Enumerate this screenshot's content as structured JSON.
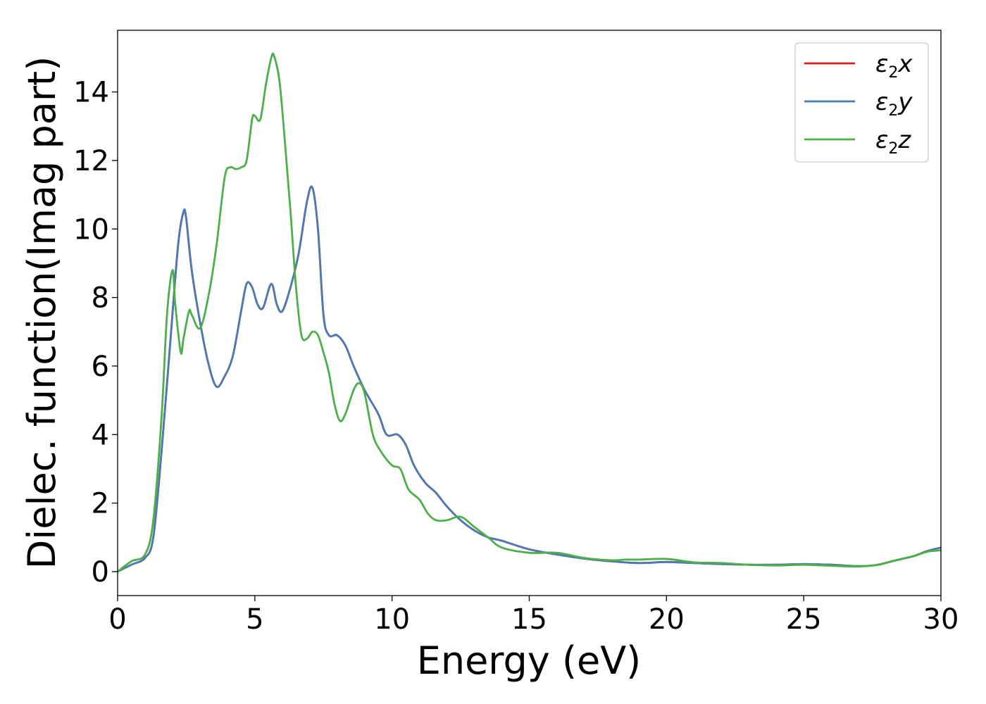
{
  "chart_data": {
    "type": "line",
    "title": "",
    "xlabel": "Energy (eV)",
    "ylabel": "Dielec. function(Imag part)",
    "xlim": [
      0,
      30
    ],
    "ylim": [
      -0.7,
      15.8
    ],
    "xticks": [
      0,
      5,
      10,
      15,
      20,
      25,
      30
    ],
    "yticks": [
      0,
      2,
      4,
      6,
      8,
      10,
      12,
      14
    ],
    "grid": false,
    "legend_position": "top-right",
    "series": [
      {
        "name_base": "ε",
        "name_sub": "2",
        "name_suffix": "x",
        "color": "#e41a1c",
        "x": [
          0,
          0.5,
          1.0,
          1.3,
          1.6,
          1.9,
          2.2,
          2.4,
          2.5,
          2.7,
          3.0,
          3.3,
          3.6,
          3.9,
          4.2,
          4.5,
          4.7,
          4.9,
          5.1,
          5.3,
          5.6,
          5.8,
          6.0,
          6.3,
          6.6,
          6.9,
          7.1,
          7.3,
          7.5,
          7.7,
          8.0,
          8.3,
          8.6,
          9.0,
          9.5,
          9.8,
          10.2,
          10.5,
          10.8,
          11.2,
          11.6,
          12.0,
          12.5,
          13.0,
          13.5,
          14.0,
          15.0,
          16.0,
          17.0,
          18.0,
          19.0,
          20.0,
          21.0,
          22.0,
          23.0,
          24.0,
          25.0,
          26.0,
          27.0,
          27.7,
          28.3,
          29.0,
          29.5,
          30.0
        ],
        "y": [
          0,
          0.2,
          0.4,
          1.0,
          3.5,
          6.5,
          9.5,
          10.5,
          10.3,
          8.8,
          7.3,
          6.1,
          5.4,
          5.7,
          6.3,
          7.6,
          8.4,
          8.3,
          7.8,
          7.7,
          8.4,
          7.8,
          7.6,
          8.3,
          9.3,
          10.8,
          11.2,
          10.0,
          7.5,
          6.9,
          6.9,
          6.6,
          6.0,
          5.3,
          4.6,
          4.0,
          4.0,
          3.7,
          3.1,
          2.6,
          2.3,
          1.9,
          1.5,
          1.2,
          1.0,
          0.9,
          0.65,
          0.5,
          0.38,
          0.3,
          0.25,
          0.28,
          0.25,
          0.22,
          0.2,
          0.2,
          0.22,
          0.2,
          0.16,
          0.2,
          0.32,
          0.45,
          0.6,
          0.7
        ]
      },
      {
        "name_base": "ε",
        "name_sub": "2",
        "name_suffix": "y",
        "color": "#4a7bb4",
        "x": [
          0,
          0.5,
          1.0,
          1.3,
          1.6,
          1.9,
          2.2,
          2.4,
          2.5,
          2.7,
          3.0,
          3.3,
          3.6,
          3.9,
          4.2,
          4.5,
          4.7,
          4.9,
          5.1,
          5.3,
          5.6,
          5.8,
          6.0,
          6.3,
          6.6,
          6.9,
          7.1,
          7.3,
          7.5,
          7.7,
          8.0,
          8.3,
          8.6,
          9.0,
          9.5,
          9.8,
          10.2,
          10.5,
          10.8,
          11.2,
          11.6,
          12.0,
          12.5,
          13.0,
          13.5,
          14.0,
          15.0,
          16.0,
          17.0,
          18.0,
          19.0,
          20.0,
          21.0,
          22.0,
          23.0,
          24.0,
          25.0,
          26.0,
          27.0,
          27.7,
          28.3,
          29.0,
          29.5,
          30.0
        ],
        "y": [
          0,
          0.2,
          0.4,
          1.0,
          3.5,
          6.5,
          9.5,
          10.5,
          10.3,
          8.8,
          7.3,
          6.1,
          5.4,
          5.7,
          6.3,
          7.6,
          8.4,
          8.3,
          7.8,
          7.7,
          8.4,
          7.8,
          7.6,
          8.3,
          9.3,
          10.8,
          11.2,
          10.0,
          7.5,
          6.9,
          6.9,
          6.6,
          6.0,
          5.3,
          4.6,
          4.0,
          4.0,
          3.7,
          3.1,
          2.6,
          2.3,
          1.9,
          1.5,
          1.2,
          1.0,
          0.9,
          0.65,
          0.5,
          0.38,
          0.3,
          0.25,
          0.28,
          0.25,
          0.22,
          0.2,
          0.2,
          0.22,
          0.2,
          0.16,
          0.2,
          0.32,
          0.45,
          0.6,
          0.7
        ]
      },
      {
        "name_base": "ε",
        "name_sub": "2",
        "name_suffix": "z",
        "color": "#4daf4a",
        "x": [
          0,
          0.5,
          1.0,
          1.3,
          1.6,
          1.8,
          2.0,
          2.1,
          2.3,
          2.4,
          2.6,
          2.7,
          3.0,
          3.3,
          3.6,
          3.9,
          4.1,
          4.3,
          4.5,
          4.7,
          4.9,
          5.0,
          5.2,
          5.4,
          5.6,
          5.7,
          5.9,
          6.1,
          6.3,
          6.5,
          6.7,
          6.9,
          7.1,
          7.3,
          7.5,
          7.7,
          7.9,
          8.1,
          8.3,
          8.6,
          8.8,
          9.0,
          9.3,
          9.6,
          10.0,
          10.3,
          10.6,
          11.0,
          11.3,
          11.6,
          12.0,
          12.5,
          13.0,
          13.5,
          14.0,
          15.0,
          16.0,
          17.0,
          18.0,
          18.5,
          19.0,
          20.0,
          21.0,
          22.0,
          23.0,
          24.0,
          25.0,
          26.0,
          27.0,
          27.7,
          28.3,
          29.0,
          29.5,
          30.0
        ],
        "y": [
          0,
          0.3,
          0.5,
          1.5,
          4.5,
          7.5,
          8.8,
          7.8,
          6.4,
          6.8,
          7.6,
          7.5,
          7.1,
          8.0,
          9.5,
          11.5,
          11.8,
          11.75,
          11.8,
          12.0,
          13.2,
          13.3,
          13.2,
          14.2,
          15.0,
          15.05,
          14.3,
          12.5,
          10.5,
          8.3,
          6.9,
          6.8,
          7.0,
          6.9,
          6.4,
          5.8,
          4.9,
          4.4,
          4.6,
          5.3,
          5.5,
          5.2,
          4.0,
          3.5,
          3.1,
          3.0,
          2.4,
          2.1,
          1.7,
          1.5,
          1.5,
          1.6,
          1.3,
          1.0,
          0.7,
          0.55,
          0.55,
          0.4,
          0.33,
          0.35,
          0.35,
          0.37,
          0.27,
          0.25,
          0.2,
          0.18,
          0.2,
          0.17,
          0.15,
          0.2,
          0.32,
          0.45,
          0.58,
          0.62
        ]
      }
    ]
  }
}
